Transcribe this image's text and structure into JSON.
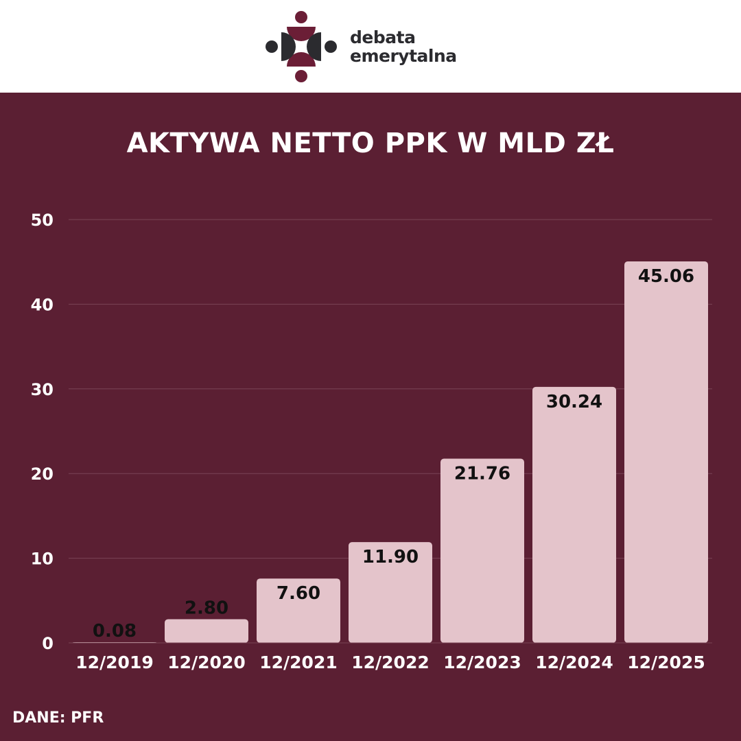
{
  "brand": {
    "name_line1": "debata",
    "name_line2": "emerytalna",
    "logo_colors": {
      "dark": "#2b2b2f",
      "accent": "#6b1e36"
    }
  },
  "footer": {
    "source": "DANE: PFR"
  },
  "colors": {
    "background": "#5b1f33",
    "header_bg": "#ffffff",
    "bar": "#e4c4cb",
    "grid": "#7a4456",
    "text": "#ffffff",
    "data_label": "#111111"
  },
  "chart_data": {
    "type": "bar",
    "title": "AKTYWA NETTO PPK W MLD ZŁ",
    "xlabel": "",
    "ylabel": "",
    "categories": [
      "12/2019",
      "12/2020",
      "12/2021",
      "12/2022",
      "12/2023",
      "12/2024",
      "12/2025"
    ],
    "values": [
      0.08,
      2.8,
      7.6,
      11.9,
      21.76,
      30.24,
      45.06
    ],
    "value_labels": [
      "0.08",
      "2.80",
      "7.60",
      "11.90",
      "21.76",
      "30.24",
      "45.06"
    ],
    "ylim": [
      0,
      50
    ],
    "yticks": [
      0,
      10,
      20,
      30,
      40,
      50
    ],
    "grid": true,
    "legend": "none"
  }
}
